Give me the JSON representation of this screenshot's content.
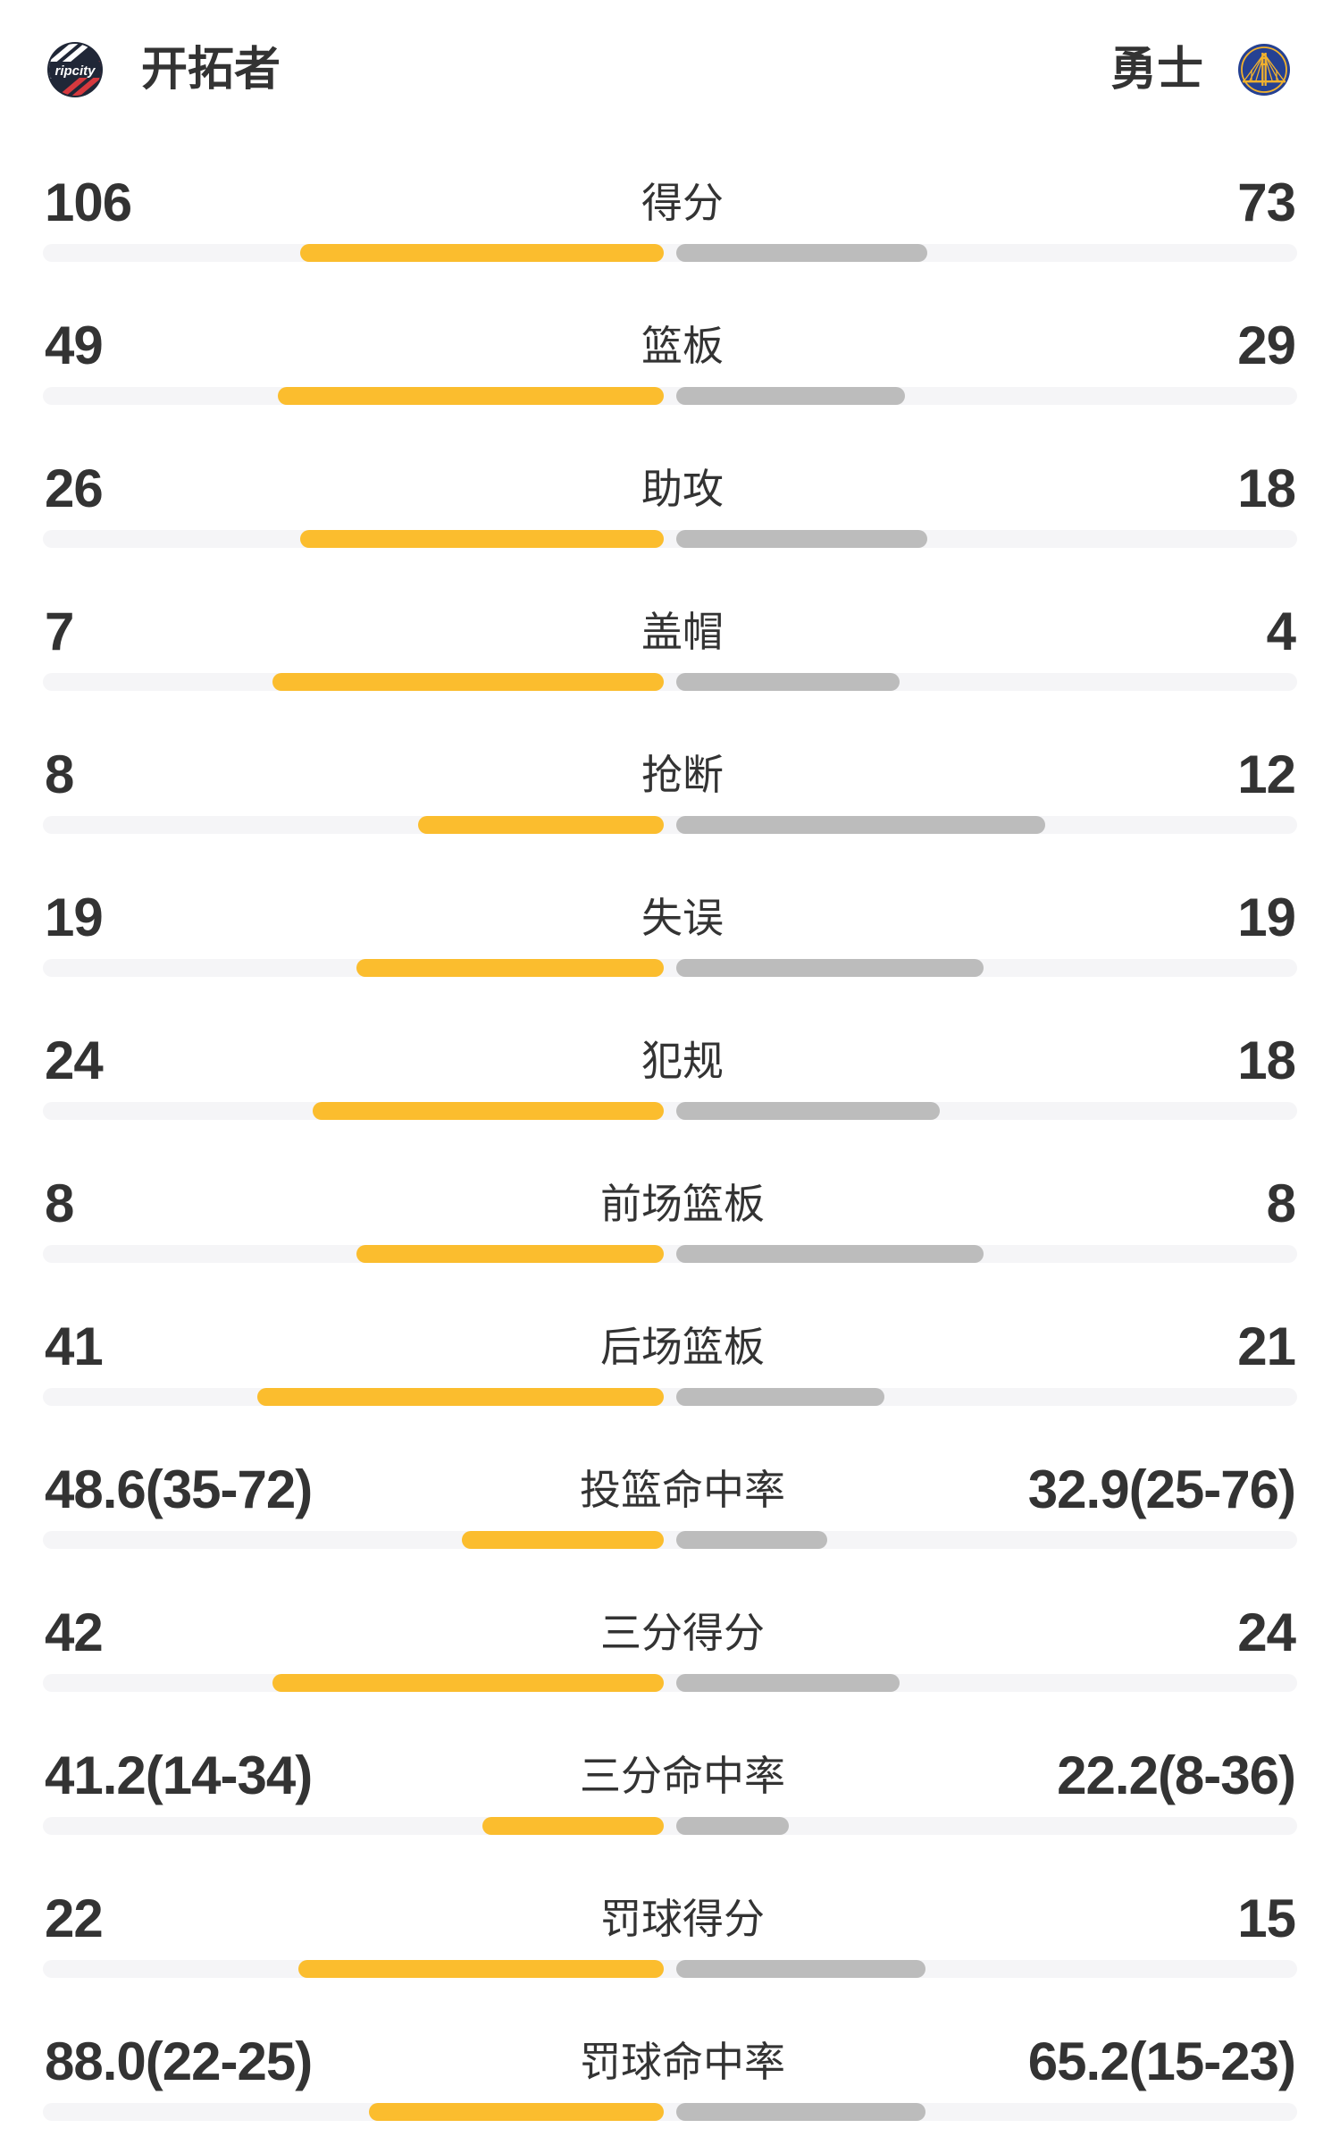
{
  "header": {
    "home_team": {
      "name": "开拓者",
      "logo": "trail-blazers-ripcity-logo",
      "logo_text": "ripcity"
    },
    "away_team": {
      "name": "勇士",
      "logo": "warriors-bridge-logo"
    }
  },
  "colors": {
    "home_bar": "#FBBD2E",
    "away_bar": "#BCBCBC",
    "bar_track": "#F5F5F7",
    "text": "#333333",
    "background": "#FFFFFF",
    "blazers_dark": "#202737",
    "blazers_red": "#D6393E",
    "warriors_blue": "#254193",
    "warriors_gold": "#F2B22D"
  },
  "chart_data": {
    "type": "bar",
    "orientation": "horizontal-paired-from-center",
    "home_team": "开拓者",
    "away_team": "勇士",
    "legend_position": "none",
    "grid": false,
    "rows": [
      {
        "label": "得分",
        "home": "106",
        "away": "73",
        "home_bar_frac": 0.592,
        "away_bar_frac": 0.408
      },
      {
        "label": "篮板",
        "home": "49",
        "away": "29",
        "home_bar_frac": 0.628,
        "away_bar_frac": 0.372
      },
      {
        "label": "助攻",
        "home": "26",
        "away": "18",
        "home_bar_frac": 0.591,
        "away_bar_frac": 0.409
      },
      {
        "label": "盖帽",
        "home": "7",
        "away": "4",
        "home_bar_frac": 0.636,
        "away_bar_frac": 0.364
      },
      {
        "label": "抢断",
        "home": "8",
        "away": "12",
        "home_bar_frac": 0.4,
        "away_bar_frac": 0.6
      },
      {
        "label": "失误",
        "home": "19",
        "away": "19",
        "home_bar_frac": 0.5,
        "away_bar_frac": 0.5
      },
      {
        "label": "犯规",
        "home": "24",
        "away": "18",
        "home_bar_frac": 0.571,
        "away_bar_frac": 0.429
      },
      {
        "label": "前场篮板",
        "home": "8",
        "away": "8",
        "home_bar_frac": 0.5,
        "away_bar_frac": 0.5
      },
      {
        "label": "后场篮板",
        "home": "41",
        "away": "21",
        "home_bar_frac": 0.661,
        "away_bar_frac": 0.339
      },
      {
        "label": "投篮命中率",
        "home": "48.6(35-72)",
        "away": "32.9(25-76)",
        "home_bar_frac": 0.328,
        "away_bar_frac": 0.246
      },
      {
        "label": "三分得分",
        "home": "42",
        "away": "24",
        "home_bar_frac": 0.636,
        "away_bar_frac": 0.364
      },
      {
        "label": "三分命中率",
        "home": "41.2(14-34)",
        "away": "22.2(8-36)",
        "home_bar_frac": 0.295,
        "away_bar_frac": 0.183
      },
      {
        "label": "罚球得分",
        "home": "22",
        "away": "15",
        "home_bar_frac": 0.595,
        "away_bar_frac": 0.405
      },
      {
        "label": "罚球命中率",
        "home": "88.0(22-25)",
        "away": "65.2(15-23)",
        "home_bar_frac": 0.48,
        "away_bar_frac": 0.405
      }
    ]
  }
}
